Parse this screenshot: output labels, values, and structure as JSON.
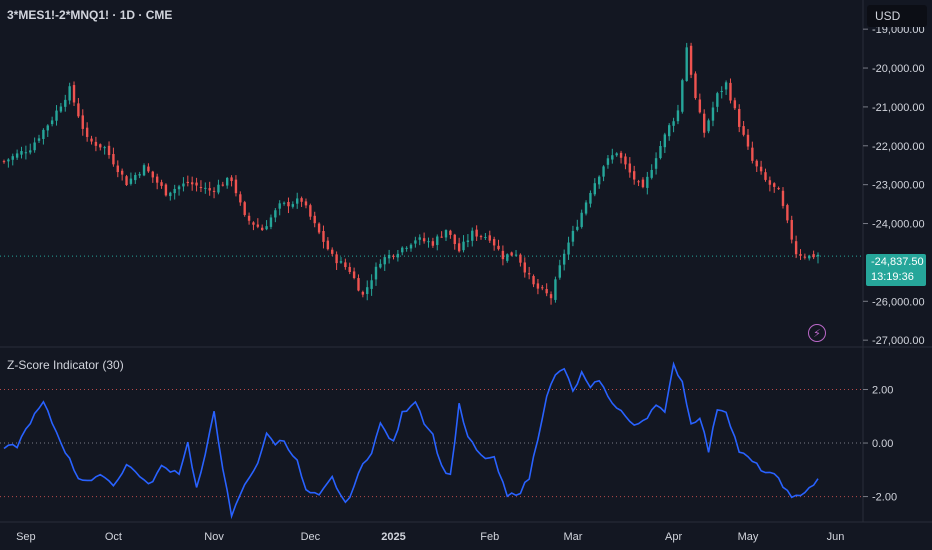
{
  "header": {
    "symbol_title": "3*MES1!-2*MNQ1! · 1D · CME",
    "currency": "USD",
    "last_price": "-24,837.50",
    "countdown": "13:19:36"
  },
  "indicator": {
    "title": "Z-Score Indicator (30)"
  },
  "colors": {
    "background": "#131722",
    "up": "#26a69a",
    "down": "#ef5350",
    "zscore_line": "#2962ff",
    "grid": "#2a2e39",
    "text": "#d1d4dc",
    "badge": "#ba68c8"
  },
  "chart_data": [
    {
      "type": "candlestick",
      "title": "3*MES1!-2*MNQ1! · 1D · CME",
      "ylim": [
        -27150,
        -18250
      ],
      "y_ticks": [
        -19000,
        -20000,
        -21000,
        -22000,
        -23000,
        -24000,
        -24837.5,
        -26000,
        -27000
      ],
      "y_tick_labels": [
        "-19,000.00",
        "-20,000.00",
        "-21,000.00",
        "-22,000.00",
        "-23,000.00",
        "-24,000.00",
        "-24,837.50",
        "-26,000.00",
        "-27,000.00"
      ],
      "last_price": -24837.5,
      "x_labels": [
        "Sep",
        "Oct",
        "Nov",
        "Dec",
        "2025",
        "Feb",
        "Mar",
        "Apr",
        "May",
        "Jun"
      ],
      "anchors": [
        [
          0,
          -22400
        ],
        [
          6,
          -22050
        ],
        [
          11,
          -21300
        ],
        [
          15,
          -20550
        ],
        [
          19,
          -21850
        ],
        [
          23,
          -22050
        ],
        [
          28,
          -22950
        ],
        [
          32,
          -22550
        ],
        [
          37,
          -23200
        ],
        [
          42,
          -22950
        ],
        [
          47,
          -23150
        ],
        [
          52,
          -22850
        ],
        [
          55,
          -23850
        ],
        [
          59,
          -24150
        ],
        [
          63,
          -23550
        ],
        [
          68,
          -23400
        ],
        [
          71,
          -24050
        ],
        [
          75,
          -24850
        ],
        [
          79,
          -25200
        ],
        [
          82,
          -25850
        ],
        [
          86,
          -24950
        ],
        [
          90,
          -24700
        ],
        [
          94,
          -24400
        ],
        [
          98,
          -24500
        ],
        [
          101,
          -24150
        ],
        [
          104,
          -24700
        ],
        [
          107,
          -24250
        ],
        [
          111,
          -24350
        ],
        [
          114,
          -24850
        ],
        [
          117,
          -24750
        ],
        [
          121,
          -25600
        ],
        [
          125,
          -25900
        ],
        [
          128,
          -24750
        ],
        [
          131,
          -24000
        ],
        [
          134,
          -23150
        ],
        [
          137,
          -22500
        ],
        [
          140,
          -22150
        ],
        [
          143,
          -22700
        ],
        [
          146,
          -23150
        ],
        [
          149,
          -22250
        ],
        [
          152,
          -21500
        ],
        [
          154,
          -21100
        ],
        [
          156,
          -19450
        ],
        [
          158,
          -20800
        ],
        [
          160,
          -21650
        ],
        [
          163,
          -20700
        ],
        [
          165,
          -20400
        ],
        [
          168,
          -21450
        ],
        [
          171,
          -22400
        ],
        [
          174,
          -22900
        ],
        [
          177,
          -23200
        ],
        [
          179,
          -24000
        ],
        [
          181,
          -24750
        ],
        [
          184,
          -24850
        ],
        [
          186,
          -24800
        ]
      ]
    },
    {
      "type": "line",
      "title": "Z-Score Indicator (30)",
      "ylim": [
        -2.95,
        3.55
      ],
      "y_ticks": [
        2,
        0,
        -2
      ],
      "y_tick_labels": [
        "2.00",
        "0.00",
        "-2.00"
      ],
      "anchors": [
        [
          0,
          -0.2
        ],
        [
          3,
          -0.1
        ],
        [
          6,
          0.8
        ],
        [
          9,
          1.5
        ],
        [
          12,
          0.4
        ],
        [
          14,
          -0.3
        ],
        [
          17,
          -1.3
        ],
        [
          20,
          -1.4
        ],
        [
          23,
          -1.2
        ],
        [
          25,
          -1.6
        ],
        [
          28,
          -0.8
        ],
        [
          31,
          -1.2
        ],
        [
          33,
          -1.6
        ],
        [
          36,
          -0.9
        ],
        [
          40,
          -1.1
        ],
        [
          42,
          0.0
        ],
        [
          44,
          -1.7
        ],
        [
          46,
          -0.5
        ],
        [
          48,
          1.2
        ],
        [
          50,
          -0.9
        ],
        [
          52,
          -2.8
        ],
        [
          54,
          -1.9
        ],
        [
          56,
          -1.3
        ],
        [
          58,
          -0.7
        ],
        [
          60,
          0.3
        ],
        [
          62,
          0.0
        ],
        [
          64,
          0.1
        ],
        [
          67,
          -0.7
        ],
        [
          69,
          -1.8
        ],
        [
          72,
          -2.0
        ],
        [
          75,
          -1.3
        ],
        [
          78,
          -2.3
        ],
        [
          80,
          -1.6
        ],
        [
          82,
          -0.8
        ],
        [
          84,
          -0.3
        ],
        [
          86,
          0.7
        ],
        [
          89,
          0.0
        ],
        [
          91,
          1.1
        ],
        [
          94,
          1.6
        ],
        [
          96,
          0.8
        ],
        [
          98,
          0.3
        ],
        [
          100,
          -0.9
        ],
        [
          102,
          -1.2
        ],
        [
          104,
          1.4
        ],
        [
          106,
          0.2
        ],
        [
          109,
          -0.5
        ],
        [
          112,
          -0.6
        ],
        [
          115,
          -2.0
        ],
        [
          118,
          -1.8
        ],
        [
          120,
          -1.3
        ],
        [
          122,
          0.2
        ],
        [
          124,
          1.8
        ],
        [
          126,
          2.5
        ],
        [
          128,
          2.8
        ],
        [
          130,
          1.9
        ],
        [
          132,
          2.6
        ],
        [
          134,
          2.0
        ],
        [
          136,
          2.4
        ],
        [
          138,
          1.7
        ],
        [
          141,
          1.2
        ],
        [
          144,
          0.6
        ],
        [
          147,
          1.0
        ],
        [
          149,
          1.5
        ],
        [
          151,
          1.1
        ],
        [
          153,
          2.9
        ],
        [
          155,
          2.3
        ],
        [
          157,
          0.7
        ],
        [
          159,
          1.0
        ],
        [
          161,
          -0.3
        ],
        [
          163,
          1.3
        ],
        [
          165,
          1.2
        ],
        [
          168,
          -0.3
        ],
        [
          171,
          -0.7
        ],
        [
          174,
          -1.1
        ],
        [
          177,
          -1.3
        ],
        [
          180,
          -2.1
        ],
        [
          183,
          -1.8
        ],
        [
          186,
          -1.4
        ]
      ]
    }
  ]
}
